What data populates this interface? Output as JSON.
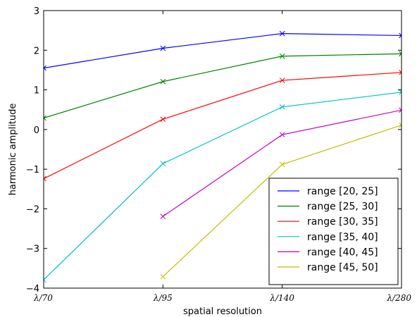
{
  "chart_data": {
    "type": "line",
    "title": "",
    "xlabel": "spatial resolution",
    "ylabel": "harmonic amplitude",
    "categories": [
      "λ/70",
      "λ/95",
      "λ/140",
      "λ/280"
    ],
    "ylim": [
      -4,
      3
    ],
    "yticks": [
      -4,
      -3,
      -2,
      -1,
      0,
      1,
      2,
      3
    ],
    "ytick_labels": [
      "−4",
      "−3",
      "−2",
      "−1",
      "0",
      "1",
      "2",
      "3"
    ],
    "grid": false,
    "legend_position": "bottom-right",
    "marker": "x",
    "series": [
      {
        "name": "range [20, 25]",
        "color": "#0000ff",
        "values": [
          1.55,
          2.05,
          2.42,
          2.37
        ]
      },
      {
        "name": "range [25, 30]",
        "color": "#008000",
        "values": [
          0.29,
          1.21,
          1.85,
          1.91
        ]
      },
      {
        "name": "range [30, 35]",
        "color": "#ff0000",
        "values": [
          -1.24,
          0.26,
          1.24,
          1.44
        ]
      },
      {
        "name": "range [35, 40]",
        "color": "#00bfbf",
        "values": [
          -3.79,
          -0.86,
          0.57,
          0.94
        ]
      },
      {
        "name": "range [40, 45]",
        "color": "#bf00bf",
        "values": [
          null,
          -2.19,
          -0.13,
          0.49
        ]
      },
      {
        "name": "range [45, 50]",
        "color": "#bfbf00",
        "values": [
          null,
          -3.71,
          -0.88,
          0.11
        ]
      }
    ]
  }
}
